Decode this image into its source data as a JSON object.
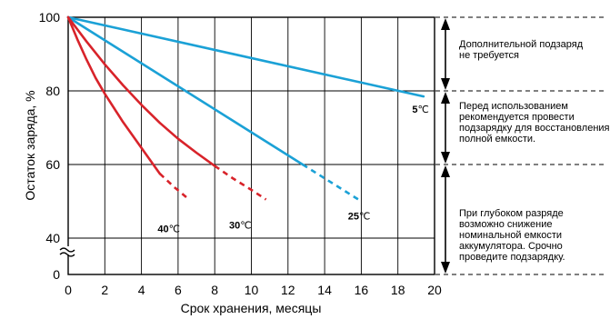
{
  "chart_data": {
    "type": "line",
    "title": "",
    "xlabel": "Срок хранения, месяцы",
    "ylabel": "Остаток заряда, %",
    "xlim": [
      0,
      20
    ],
    "ylim_visible": [
      60,
      100
    ],
    "x_ticks": [
      "0",
      "2",
      "4",
      "6",
      "8",
      "10",
      "12",
      "14",
      "16",
      "18",
      "20"
    ],
    "y_ticks": [
      {
        "label": "100",
        "value": 100
      },
      {
        "label": "80",
        "value": 80
      },
      {
        "label": "60",
        "value": 60
      },
      {
        "label": "40",
        "value": 40
      },
      {
        "label": "0",
        "value": 0
      }
    ],
    "y_axis_break": true,
    "grid": true,
    "series": [
      {
        "name": "5",
        "unit": "℃",
        "color": "#1ba1d6",
        "solid": [
          [
            0,
            100
          ],
          [
            19.4,
            78.5
          ]
        ],
        "dashed": []
      },
      {
        "name": "25",
        "unit": "℃",
        "color": "#1ba1d6",
        "solid": [
          [
            0,
            100
          ],
          [
            12.8,
            60.0
          ]
        ],
        "dashed": [
          [
            12.8,
            60.0
          ],
          [
            16.0,
            50.0
          ]
        ]
      },
      {
        "name": "30",
        "unit": "℃",
        "color": "#d8232a",
        "solid": [
          [
            0,
            100
          ],
          [
            1.0,
            93.4
          ],
          [
            2.0,
            87.2
          ],
          [
            3.0,
            81.5
          ],
          [
            4.0,
            76.2
          ],
          [
            5.0,
            71.3
          ],
          [
            6.0,
            67.0
          ],
          [
            7.0,
            63.2
          ],
          [
            8.0,
            59.6
          ]
        ],
        "dashed": [
          [
            8.0,
            59.6
          ],
          [
            9.0,
            56.2
          ],
          [
            10.0,
            53.1
          ],
          [
            10.8,
            50.5
          ]
        ]
      },
      {
        "name": "40",
        "unit": "℃",
        "color": "#d8232a",
        "solid": [
          [
            0,
            100
          ],
          [
            0.5,
            94.0
          ],
          [
            1.0,
            88.5
          ],
          [
            1.5,
            83.5
          ],
          [
            2.0,
            79.2
          ],
          [
            3.0,
            71.5
          ],
          [
            4.0,
            64.5
          ],
          [
            5.0,
            57.5
          ]
        ],
        "dashed": [
          [
            5.0,
            57.5
          ],
          [
            5.8,
            53.8
          ],
          [
            6.6,
            50.5
          ]
        ]
      }
    ],
    "zones": [
      {
        "text": [
          "Дополнительной подзаряд",
          "не требуется"
        ]
      },
      {
        "text": [
          "Перед использованием",
          "рекомендуется провести",
          "подзарядку для восстановления",
          "полной емкости."
        ]
      },
      {
        "text": [
          "При глубоком разряде",
          "возможно снижение",
          "номинальной емкости",
          "аккумулятора. Срочно",
          "проведите подзарядку."
        ]
      }
    ]
  }
}
